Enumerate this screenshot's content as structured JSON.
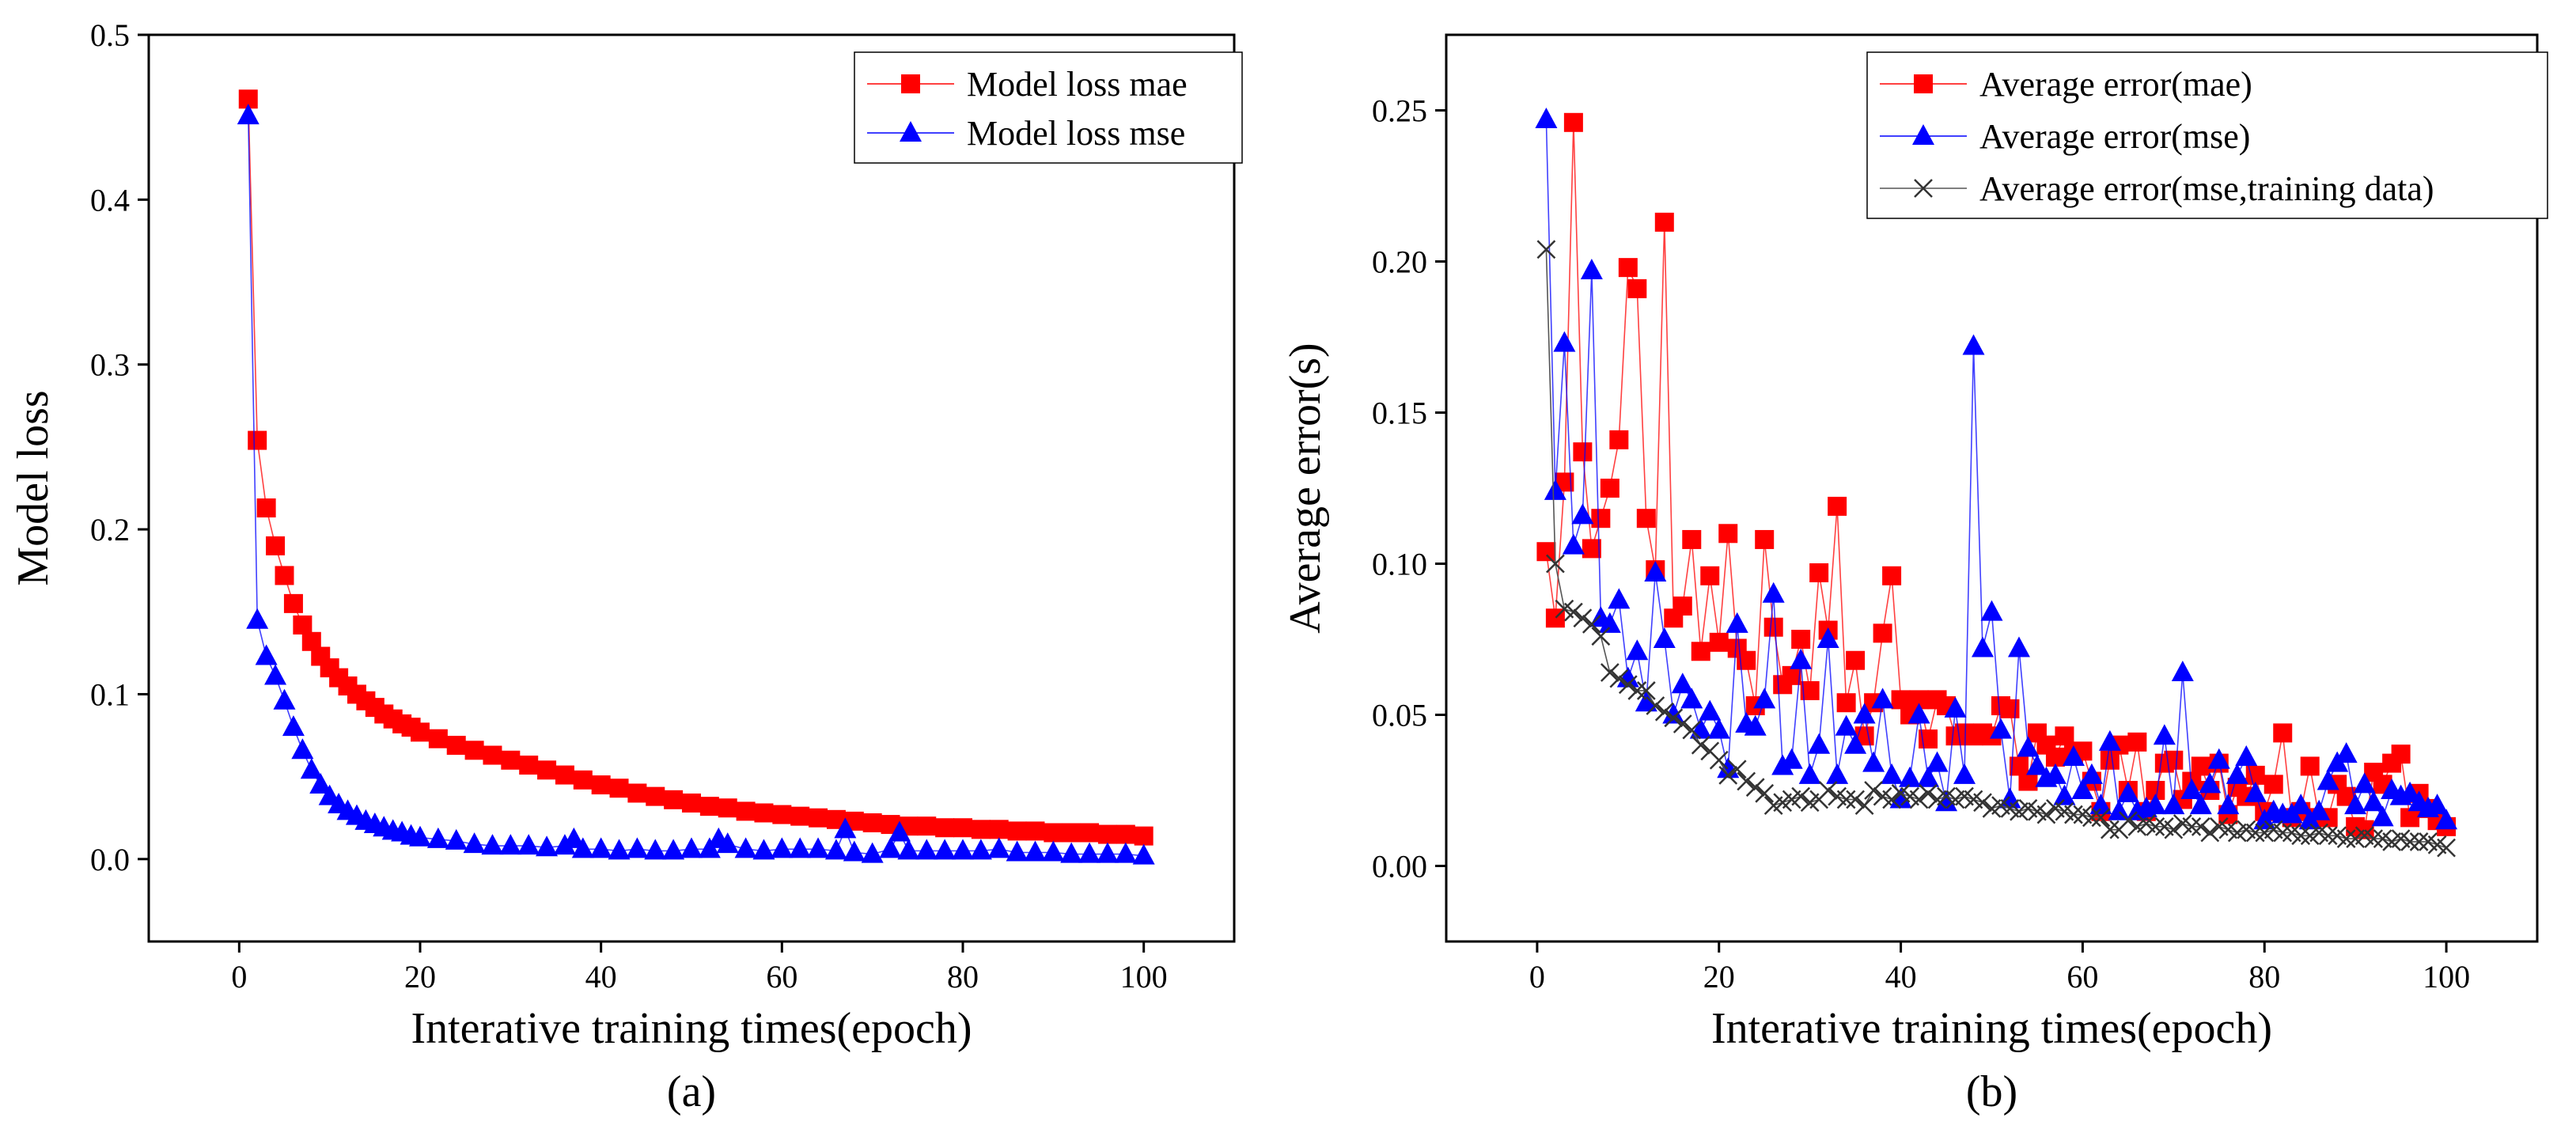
{
  "chart_data": [
    {
      "type": "line",
      "panel_label": "(a)",
      "xlabel": "Interative training times(epoch)",
      "ylabel": "Model loss",
      "xlim": [
        -10,
        110
      ],
      "ylim": [
        -0.05,
        0.5
      ],
      "xticks": [
        0,
        20,
        40,
        60,
        80,
        100
      ],
      "yticks": [
        0.0,
        0.1,
        0.2,
        0.3,
        0.4,
        0.5
      ],
      "ytick_decimals": 1,
      "legend_position": "top-right",
      "series": [
        {
          "name": "Model loss mae",
          "color": "#ff0000",
          "marker": "square",
          "x": [
            1,
            2,
            3,
            4,
            5,
            6,
            7,
            8,
            9,
            10,
            11,
            12,
            13,
            14,
            15,
            16,
            17,
            18,
            19,
            20,
            22,
            24,
            26,
            28,
            30,
            32,
            34,
            36,
            38,
            40,
            42,
            44,
            46,
            48,
            50,
            52,
            54,
            56,
            58,
            60,
            62,
            64,
            66,
            68,
            70,
            72,
            74,
            76,
            78,
            80,
            82,
            84,
            86,
            88,
            90,
            92,
            94,
            96,
            98,
            100
          ],
          "values": [
            0.461,
            0.254,
            0.213,
            0.19,
            0.172,
            0.155,
            0.142,
            0.132,
            0.123,
            0.116,
            0.11,
            0.105,
            0.1,
            0.096,
            0.092,
            0.088,
            0.085,
            0.082,
            0.08,
            0.077,
            0.073,
            0.069,
            0.066,
            0.063,
            0.06,
            0.057,
            0.054,
            0.051,
            0.048,
            0.045,
            0.043,
            0.04,
            0.038,
            0.036,
            0.034,
            0.032,
            0.031,
            0.029,
            0.028,
            0.027,
            0.026,
            0.025,
            0.024,
            0.023,
            0.022,
            0.021,
            0.02,
            0.02,
            0.019,
            0.019,
            0.018,
            0.018,
            0.017,
            0.017,
            0.016,
            0.016,
            0.016,
            0.015,
            0.015,
            0.014
          ]
        },
        {
          "name": "Model loss mse",
          "color": "#0000ff",
          "marker": "triangle",
          "x": [
            1,
            2,
            3,
            4,
            5,
            6,
            7,
            8,
            9,
            10,
            11,
            12,
            13,
            14,
            15,
            16,
            17,
            18,
            19,
            20,
            22,
            24,
            26,
            28,
            30,
            32,
            34,
            36,
            37,
            38,
            40,
            42,
            44,
            46,
            48,
            50,
            52,
            53,
            54,
            56,
            58,
            60,
            62,
            64,
            66,
            67,
            68,
            70,
            72,
            73,
            74,
            76,
            78,
            80,
            82,
            84,
            86,
            88,
            90,
            92,
            94,
            96,
            98,
            100
          ],
          "values": [
            0.451,
            0.145,
            0.123,
            0.111,
            0.096,
            0.08,
            0.066,
            0.054,
            0.045,
            0.038,
            0.033,
            0.029,
            0.026,
            0.023,
            0.021,
            0.019,
            0.017,
            0.016,
            0.014,
            0.013,
            0.012,
            0.011,
            0.009,
            0.008,
            0.008,
            0.008,
            0.007,
            0.008,
            0.012,
            0.006,
            0.006,
            0.005,
            0.006,
            0.005,
            0.005,
            0.006,
            0.006,
            0.012,
            0.009,
            0.006,
            0.005,
            0.006,
            0.006,
            0.006,
            0.005,
            0.018,
            0.004,
            0.003,
            0.006,
            0.016,
            0.005,
            0.005,
            0.005,
            0.005,
            0.005,
            0.006,
            0.004,
            0.004,
            0.004,
            0.003,
            0.003,
            0.003,
            0.003,
            0.002
          ]
        }
      ]
    },
    {
      "type": "line",
      "panel_label": "(b)",
      "xlabel": "Interative training times(epoch)",
      "ylabel": "Average error(s)",
      "xlim": [
        -10,
        110
      ],
      "ylim": [
        -0.025,
        0.275
      ],
      "xticks": [
        0,
        20,
        40,
        60,
        80,
        100
      ],
      "yticks": [
        0.0,
        0.05,
        0.1,
        0.15,
        0.2,
        0.25
      ],
      "ytick_decimals": 2,
      "legend_position": "top-right",
      "series": [
        {
          "name": "Average error(mae)",
          "color": "#ff0000",
          "marker": "square",
          "x": [
            1,
            2,
            3,
            4,
            5,
            6,
            7,
            8,
            9,
            10,
            11,
            12,
            13,
            14,
            15,
            16,
            17,
            18,
            19,
            20,
            21,
            22,
            23,
            24,
            25,
            26,
            27,
            28,
            29,
            30,
            31,
            32,
            33,
            34,
            35,
            36,
            37,
            38,
            39,
            40,
            41,
            42,
            43,
            44,
            45,
            46,
            47,
            48,
            49,
            50,
            51,
            52,
            53,
            54,
            55,
            56,
            57,
            58,
            59,
            60,
            61,
            62,
            63,
            64,
            65,
            66,
            67,
            68,
            69,
            70,
            71,
            72,
            73,
            74,
            75,
            76,
            77,
            78,
            79,
            80,
            81,
            82,
            83,
            84,
            85,
            86,
            87,
            88,
            89,
            90,
            91,
            92,
            93,
            94,
            95,
            96,
            97,
            98,
            99,
            100
          ],
          "values": [
            0.104,
            0.082,
            0.127,
            0.246,
            0.137,
            0.105,
            0.115,
            0.125,
            0.141,
            0.198,
            0.191,
            0.115,
            0.098,
            0.213,
            0.082,
            0.086,
            0.108,
            0.071,
            0.096,
            0.074,
            0.11,
            0.072,
            0.068,
            0.053,
            0.108,
            0.079,
            0.06,
            0.063,
            0.075,
            0.058,
            0.097,
            0.078,
            0.119,
            0.054,
            0.068,
            0.043,
            0.054,
            0.077,
            0.096,
            0.055,
            0.05,
            0.055,
            0.042,
            0.055,
            0.053,
            0.043,
            0.044,
            0.043,
            0.044,
            0.043,
            0.053,
            0.052,
            0.033,
            0.028,
            0.044,
            0.04,
            0.036,
            0.043,
            0.037,
            0.038,
            0.028,
            0.018,
            0.035,
            0.04,
            0.025,
            0.041,
            0.018,
            0.025,
            0.034,
            0.035,
            0.022,
            0.028,
            0.033,
            0.025,
            0.034,
            0.017,
            0.026,
            0.023,
            0.03,
            0.018,
            0.027,
            0.044,
            0.016,
            0.018,
            0.033,
            0.016,
            0.016,
            0.027,
            0.023,
            0.013,
            0.012,
            0.031,
            0.027,
            0.034,
            0.037,
            0.016,
            0.024,
            0.019,
            0.015,
            0.013
          ]
        },
        {
          "name": "Average error(mse)",
          "color": "#0000ff",
          "marker": "triangle",
          "x": [
            1,
            2,
            3,
            4,
            5,
            6,
            7,
            8,
            9,
            10,
            11,
            12,
            13,
            14,
            15,
            16,
            17,
            18,
            19,
            20,
            21,
            22,
            23,
            24,
            25,
            26,
            27,
            28,
            29,
            30,
            31,
            32,
            33,
            34,
            35,
            36,
            37,
            38,
            39,
            40,
            41,
            42,
            43,
            44,
            45,
            46,
            47,
            48,
            49,
            50,
            51,
            52,
            53,
            54,
            55,
            56,
            57,
            58,
            59,
            60,
            61,
            62,
            63,
            64,
            65,
            66,
            67,
            68,
            69,
            70,
            71,
            72,
            73,
            74,
            75,
            76,
            77,
            78,
            79,
            80,
            81,
            82,
            83,
            84,
            85,
            86,
            87,
            88,
            89,
            90,
            91,
            92,
            93,
            94,
            95,
            96,
            97,
            98,
            99,
            100
          ],
          "values": [
            0.247,
            0.124,
            0.173,
            0.106,
            0.116,
            0.197,
            0.082,
            0.08,
            0.088,
            0.062,
            0.071,
            0.054,
            0.097,
            0.075,
            0.05,
            0.06,
            0.055,
            0.045,
            0.051,
            0.045,
            0.032,
            0.08,
            0.047,
            0.046,
            0.055,
            0.09,
            0.033,
            0.035,
            0.068,
            0.03,
            0.04,
            0.075,
            0.03,
            0.046,
            0.04,
            0.05,
            0.034,
            0.055,
            0.03,
            0.022,
            0.029,
            0.05,
            0.029,
            0.034,
            0.021,
            0.052,
            0.03,
            0.172,
            0.072,
            0.084,
            0.045,
            0.022,
            0.072,
            0.039,
            0.033,
            0.029,
            0.03,
            0.023,
            0.036,
            0.025,
            0.03,
            0.02,
            0.041,
            0.018,
            0.024,
            0.018,
            0.019,
            0.02,
            0.043,
            0.02,
            0.064,
            0.025,
            0.02,
            0.027,
            0.035,
            0.02,
            0.03,
            0.036,
            0.024,
            0.015,
            0.018,
            0.017,
            0.017,
            0.02,
            0.015,
            0.018,
            0.028,
            0.034,
            0.037,
            0.02,
            0.027,
            0.021,
            0.016,
            0.025,
            0.023,
            0.024,
            0.021,
            0.019,
            0.02,
            0.015
          ]
        },
        {
          "name": "Average error(mse,training data)",
          "color": "#333333",
          "marker": "x",
          "x": [
            1,
            2,
            3,
            4,
            5,
            6,
            7,
            8,
            9,
            10,
            11,
            12,
            13,
            14,
            15,
            16,
            17,
            18,
            19,
            20,
            21,
            22,
            23,
            24,
            25,
            26,
            27,
            28,
            29,
            30,
            31,
            32,
            33,
            34,
            35,
            36,
            37,
            38,
            39,
            40,
            41,
            42,
            43,
            44,
            45,
            46,
            47,
            48,
            49,
            50,
            51,
            52,
            53,
            54,
            55,
            56,
            57,
            58,
            59,
            60,
            61,
            62,
            63,
            64,
            65,
            66,
            67,
            68,
            69,
            70,
            71,
            72,
            73,
            74,
            75,
            76,
            77,
            78,
            79,
            80,
            81,
            82,
            83,
            84,
            85,
            86,
            87,
            88,
            89,
            90,
            91,
            92,
            93,
            94,
            95,
            96,
            97,
            98,
            99,
            100
          ],
          "values": [
            0.204,
            0.1,
            0.085,
            0.084,
            0.082,
            0.08,
            0.076,
            0.064,
            0.062,
            0.06,
            0.058,
            0.058,
            0.053,
            0.051,
            0.049,
            0.047,
            0.045,
            0.04,
            0.038,
            0.035,
            0.03,
            0.032,
            0.028,
            0.026,
            0.024,
            0.02,
            0.021,
            0.022,
            0.023,
            0.021,
            0.022,
            0.025,
            0.023,
            0.022,
            0.022,
            0.02,
            0.025,
            0.023,
            0.022,
            0.024,
            0.023,
            0.022,
            0.024,
            0.022,
            0.023,
            0.022,
            0.023,
            0.022,
            0.021,
            0.019,
            0.02,
            0.019,
            0.018,
            0.019,
            0.018,
            0.017,
            0.019,
            0.018,
            0.017,
            0.017,
            0.016,
            0.016,
            0.012,
            0.012,
            0.015,
            0.013,
            0.014,
            0.013,
            0.013,
            0.012,
            0.014,
            0.013,
            0.013,
            0.011,
            0.013,
            0.012,
            0.011,
            0.012,
            0.011,
            0.011,
            0.012,
            0.011,
            0.011,
            0.01,
            0.01,
            0.011,
            0.01,
            0.01,
            0.009,
            0.009,
            0.01,
            0.009,
            0.009,
            0.008,
            0.009,
            0.008,
            0.008,
            0.008,
            0.007,
            0.006
          ]
        }
      ]
    }
  ]
}
